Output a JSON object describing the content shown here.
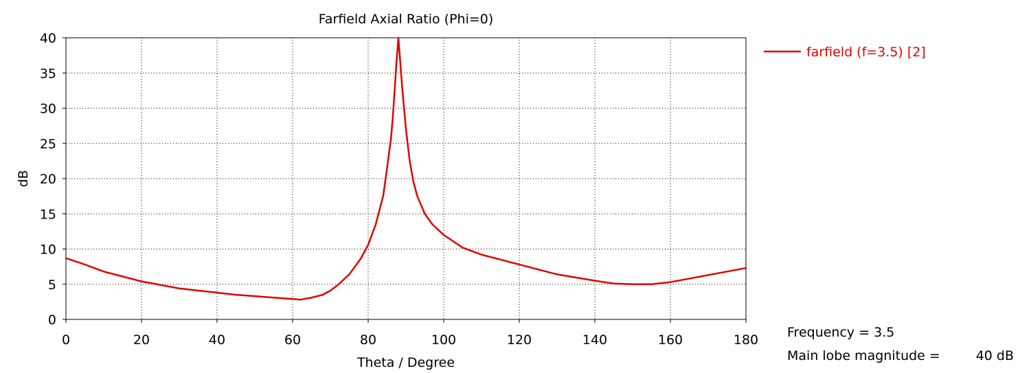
{
  "chart_data": {
    "type": "line",
    "title": "Farfield  Axial Ratio (Phi=0)",
    "xlabel": "Theta / Degree",
    "ylabel": "dB",
    "xlim": [
      0,
      180
    ],
    "ylim": [
      0,
      40
    ],
    "xticks": [
      0,
      20,
      40,
      60,
      80,
      100,
      120,
      140,
      160,
      180
    ],
    "yticks": [
      0,
      5,
      10,
      15,
      20,
      25,
      30,
      35,
      40
    ],
    "grid": true,
    "legend_position": "top-right",
    "series": [
      {
        "name": "farfield (f=3.5) [2]",
        "color": "#e00000",
        "x": [
          0,
          5,
          10,
          15,
          20,
          25,
          30,
          35,
          40,
          45,
          50,
          55,
          60,
          62,
          65,
          68,
          70,
          72,
          75,
          78,
          80,
          82,
          84,
          85,
          86,
          86.5,
          87,
          87.5,
          88,
          88.5,
          89,
          89.5,
          90,
          91,
          92,
          93,
          95,
          97,
          100,
          105,
          110,
          120,
          130,
          140,
          145,
          150,
          155,
          160,
          165,
          170,
          175,
          180
        ],
        "values": [
          8.7,
          7.8,
          6.8,
          6.1,
          5.4,
          4.9,
          4.4,
          4.1,
          3.8,
          3.5,
          3.3,
          3.1,
          2.9,
          2.8,
          3.1,
          3.5,
          4.1,
          4.9,
          6.4,
          8.6,
          10.6,
          13.5,
          17.6,
          21.5,
          25.5,
          28.5,
          32.5,
          36.5,
          40.0,
          36.5,
          33.0,
          30.0,
          27.0,
          22.5,
          19.5,
          17.5,
          15.0,
          13.5,
          12.0,
          10.2,
          9.2,
          7.8,
          6.4,
          5.5,
          5.1,
          5.0,
          5.0,
          5.3,
          5.8,
          6.3,
          6.8,
          7.3
        ]
      }
    ]
  },
  "annotations": {
    "frequency": "Frequency = 3.5",
    "main_lobe_label": "Main lobe magnitude =",
    "main_lobe_value": "40 dB"
  }
}
